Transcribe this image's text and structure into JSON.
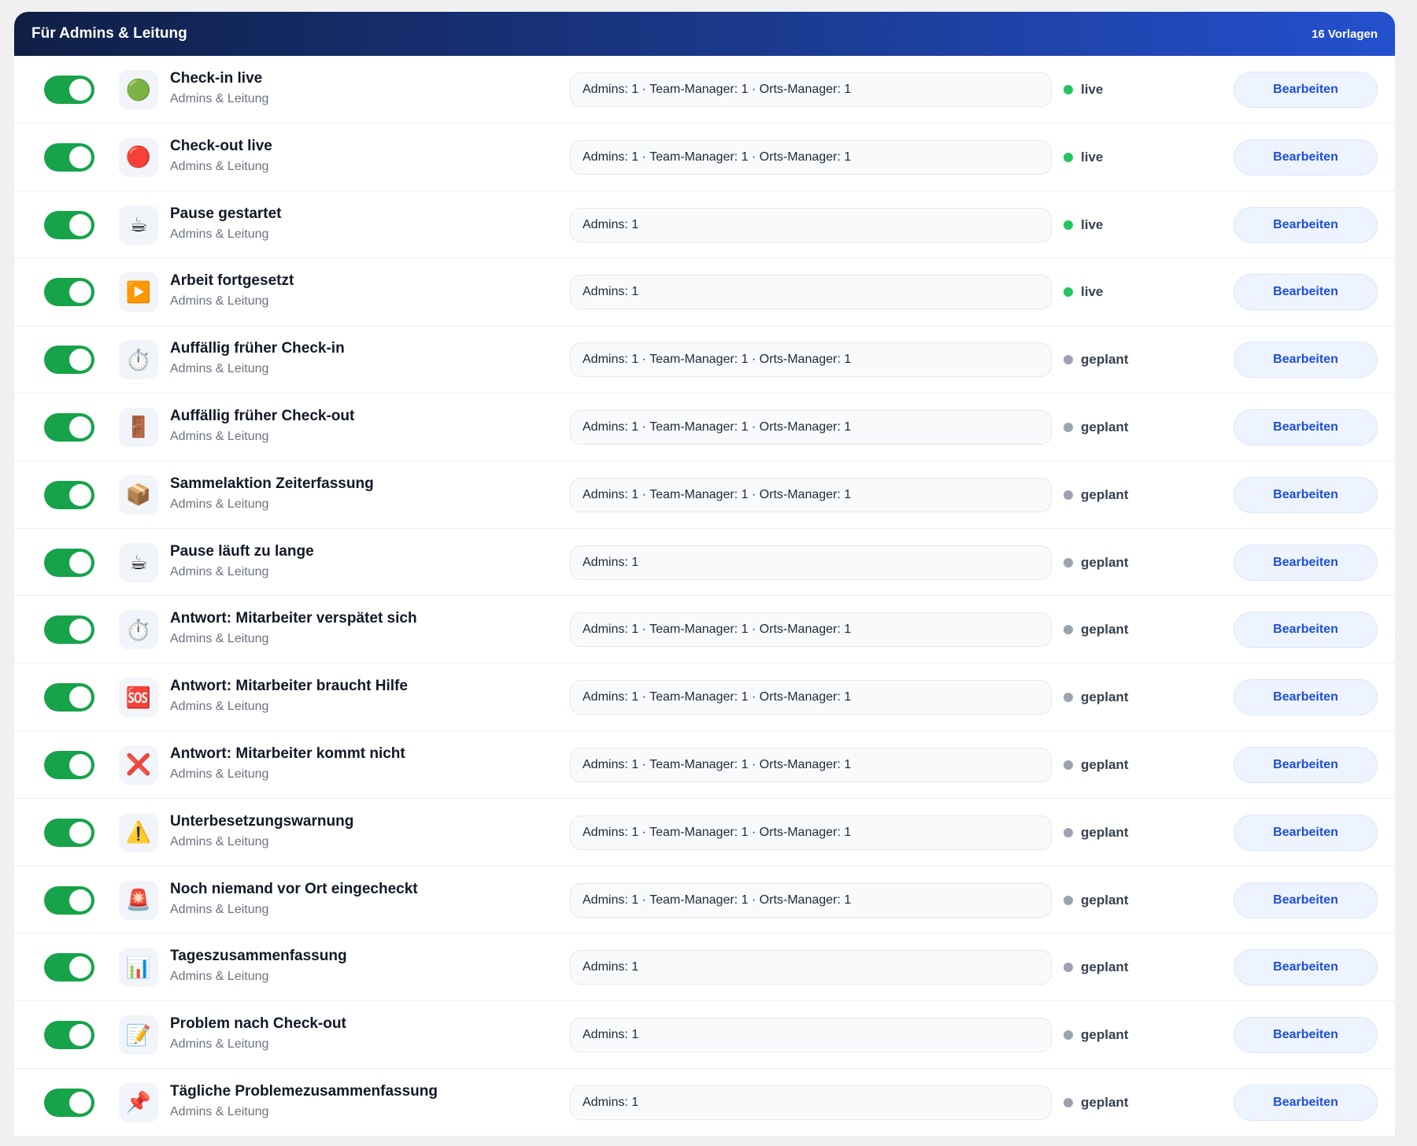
{
  "header": {
    "title": "Für Admins & Leitung",
    "count": "16 Vorlagen"
  },
  "rows": [
    {
      "icon": "🟢",
      "title": "Check-in live",
      "subtitle": "Admins & Leitung",
      "recipients": "Admins: 1 · Team-Manager: 1 · Orts-Manager: 1",
      "status": "live",
      "status_color": "#22c55e",
      "action": "Bearbeiten"
    },
    {
      "icon": "🔴",
      "title": "Check-out live",
      "subtitle": "Admins & Leitung",
      "recipients": "Admins: 1 · Team-Manager: 1 · Orts-Manager: 1",
      "status": "live",
      "status_color": "#22c55e",
      "action": "Bearbeiten"
    },
    {
      "icon": "☕",
      "title": "Pause gestartet",
      "subtitle": "Admins & Leitung",
      "recipients": "Admins: 1",
      "status": "live",
      "status_color": "#22c55e",
      "action": "Bearbeiten"
    },
    {
      "icon": "▶️",
      "title": "Arbeit fortgesetzt",
      "subtitle": "Admins & Leitung",
      "recipients": "Admins: 1",
      "status": "live",
      "status_color": "#22c55e",
      "action": "Bearbeiten"
    },
    {
      "icon": "⏱️",
      "title": "Auffällig früher Check-in",
      "subtitle": "Admins & Leitung",
      "recipients": "Admins: 1 · Team-Manager: 1 · Orts-Manager: 1",
      "status": "geplant",
      "status_color": "#9ca3af",
      "action": "Bearbeiten"
    },
    {
      "icon": "🚪",
      "title": "Auffällig früher Check-out",
      "subtitle": "Admins & Leitung",
      "recipients": "Admins: 1 · Team-Manager: 1 · Orts-Manager: 1",
      "status": "geplant",
      "status_color": "#9ca3af",
      "action": "Bearbeiten"
    },
    {
      "icon": "📦",
      "title": "Sammelaktion Zeiterfassung",
      "subtitle": "Admins & Leitung",
      "recipients": "Admins: 1 · Team-Manager: 1 · Orts-Manager: 1",
      "status": "geplant",
      "status_color": "#9ca3af",
      "action": "Bearbeiten"
    },
    {
      "icon": "☕",
      "title": "Pause läuft zu lange",
      "subtitle": "Admins & Leitung",
      "recipients": "Admins: 1",
      "status": "geplant",
      "status_color": "#9ca3af",
      "action": "Bearbeiten"
    },
    {
      "icon": "⏱️",
      "title": "Antwort: Mitarbeiter verspätet sich",
      "subtitle": "Admins & Leitung",
      "recipients": "Admins: 1 · Team-Manager: 1 · Orts-Manager: 1",
      "status": "geplant",
      "status_color": "#9ca3af",
      "action": "Bearbeiten"
    },
    {
      "icon": "🆘",
      "title": "Antwort: Mitarbeiter braucht Hilfe",
      "subtitle": "Admins & Leitung",
      "recipients": "Admins: 1 · Team-Manager: 1 · Orts-Manager: 1",
      "status": "geplant",
      "status_color": "#9ca3af",
      "action": "Bearbeiten"
    },
    {
      "icon": "❌",
      "title": "Antwort: Mitarbeiter kommt nicht",
      "subtitle": "Admins & Leitung",
      "recipients": "Admins: 1 · Team-Manager: 1 · Orts-Manager: 1",
      "status": "geplant",
      "status_color": "#9ca3af",
      "action": "Bearbeiten"
    },
    {
      "icon": "⚠️",
      "title": "Unterbesetzungswarnung",
      "subtitle": "Admins & Leitung",
      "recipients": "Admins: 1 · Team-Manager: 1 · Orts-Manager: 1",
      "status": "geplant",
      "status_color": "#9ca3af",
      "action": "Bearbeiten"
    },
    {
      "icon": "🚨",
      "title": "Noch niemand vor Ort eingecheckt",
      "subtitle": "Admins & Leitung",
      "recipients": "Admins: 1 · Team-Manager: 1 · Orts-Manager: 1",
      "status": "geplant",
      "status_color": "#9ca3af",
      "action": "Bearbeiten"
    },
    {
      "icon": "📊",
      "title": "Tageszusammenfassung",
      "subtitle": "Admins & Leitung",
      "recipients": "Admins: 1",
      "status": "geplant",
      "status_color": "#9ca3af",
      "action": "Bearbeiten"
    },
    {
      "icon": "📝",
      "title": "Problem nach Check-out",
      "subtitle": "Admins & Leitung",
      "recipients": "Admins: 1",
      "status": "geplant",
      "status_color": "#9ca3af",
      "action": "Bearbeiten"
    },
    {
      "icon": "📌",
      "title": "Tägliche Problemezusammenfassung",
      "subtitle": "Admins & Leitung",
      "recipients": "Admins: 1",
      "status": "geplant",
      "status_color": "#9ca3af",
      "action": "Bearbeiten"
    }
  ]
}
